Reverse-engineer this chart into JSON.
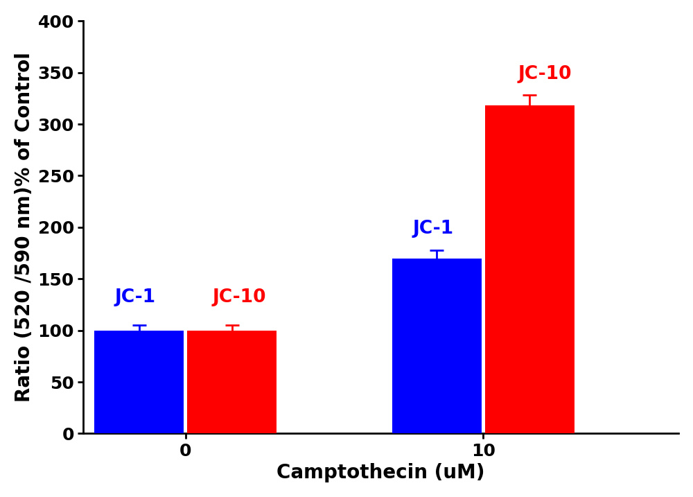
{
  "categories": [
    "0",
    "10"
  ],
  "jc1_values": [
    100,
    170
  ],
  "jc10_values": [
    100,
    318
  ],
  "jc1_errors": [
    5,
    8
  ],
  "jc10_errors": [
    5,
    10
  ],
  "jc1_color": "#0000FF",
  "jc10_color": "#FF0000",
  "bar_width": 0.48,
  "group_positions": [
    0.0,
    1.6
  ],
  "xlabel": "Camptothecin (uM)",
  "ylabel": "Ratio (520 /590 nm)% of Control",
  "ylim": [
    0,
    400
  ],
  "yticks": [
    0,
    50,
    100,
    150,
    200,
    250,
    300,
    350,
    400
  ],
  "xtick_labels": [
    "0",
    "10"
  ],
  "background_color": "#FFFFFF",
  "label_jc1": "JC-1",
  "label_jc10": "JC-10",
  "xlabel_fontsize": 20,
  "ylabel_fontsize": 20,
  "tick_fontsize": 18,
  "annotation_fontsize": 19,
  "error_capsize": 7,
  "error_linewidth": 2,
  "xlim": [
    -0.55,
    2.65
  ]
}
